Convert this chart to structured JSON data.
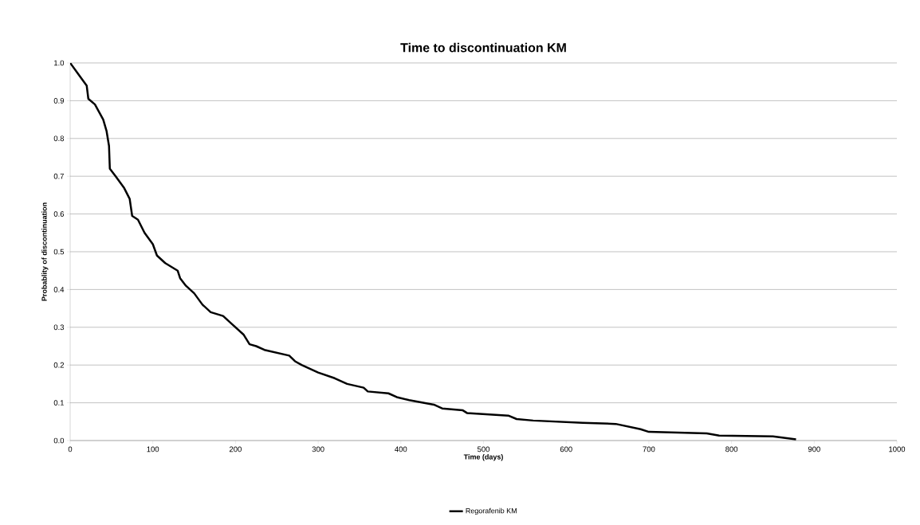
{
  "chart_data": {
    "type": "line",
    "title": "Time to discontinuation KM",
    "xlabel": "Time (days)",
    "ylabel": "Probablity of discontinuation",
    "xlim": [
      0,
      1000
    ],
    "xticks": [
      0,
      100,
      200,
      300,
      400,
      500,
      600,
      700,
      800,
      900,
      1000
    ],
    "ylim": [
      0,
      1.0
    ],
    "yticks": [
      {
        "value": 0,
        "label": "0.0"
      },
      {
        "value": 0.1,
        "label": "0.1"
      },
      {
        "value": 0.2,
        "label": "0.2"
      },
      {
        "value": 0.3,
        "label": "0.3"
      },
      {
        "value": 0.4,
        "label": "0.4"
      },
      {
        "value": 0.5,
        "label": "0.5"
      },
      {
        "value": 0.6,
        "label": "0.6"
      },
      {
        "value": 0.7,
        "label": "0.7"
      },
      {
        "value": 0.8,
        "label": "0.8"
      },
      {
        "value": 0.9,
        "label": "0.9"
      },
      {
        "value": 1.0,
        "label": "1.0"
      }
    ],
    "grid": "y",
    "legend": "bottom",
    "marker": "none",
    "line_style": "solid",
    "series": [
      {
        "name": "Regorafenib KM",
        "color": "#000000",
        "x": [
          0,
          10,
          20,
          22,
          30,
          35,
          40,
          44,
          47,
          48,
          55,
          65,
          72,
          75,
          82,
          90,
          100,
          105,
          115,
          130,
          133,
          140,
          150,
          160,
          170,
          185,
          195,
          210,
          217,
          225,
          235,
          265,
          272,
          280,
          300,
          320,
          335,
          355,
          360,
          385,
          395,
          410,
          440,
          450,
          475,
          480,
          530,
          540,
          560,
          620,
          660,
          690,
          700,
          770,
          785,
          850,
          878
        ],
        "values": [
          1.0,
          0.97,
          0.94,
          0.905,
          0.89,
          0.87,
          0.85,
          0.82,
          0.78,
          0.72,
          0.7,
          0.67,
          0.64,
          0.595,
          0.585,
          0.55,
          0.52,
          0.49,
          0.47,
          0.45,
          0.43,
          0.41,
          0.39,
          0.36,
          0.34,
          0.33,
          0.31,
          0.28,
          0.255,
          0.25,
          0.24,
          0.225,
          0.21,
          0.2,
          0.18,
          0.165,
          0.15,
          0.14,
          0.13,
          0.125,
          0.115,
          0.107,
          0.095,
          0.085,
          0.08,
          0.073,
          0.066,
          0.057,
          0.053,
          0.047,
          0.044,
          0.03,
          0.023,
          0.019,
          0.013,
          0.011,
          0.003
        ]
      }
    ]
  }
}
